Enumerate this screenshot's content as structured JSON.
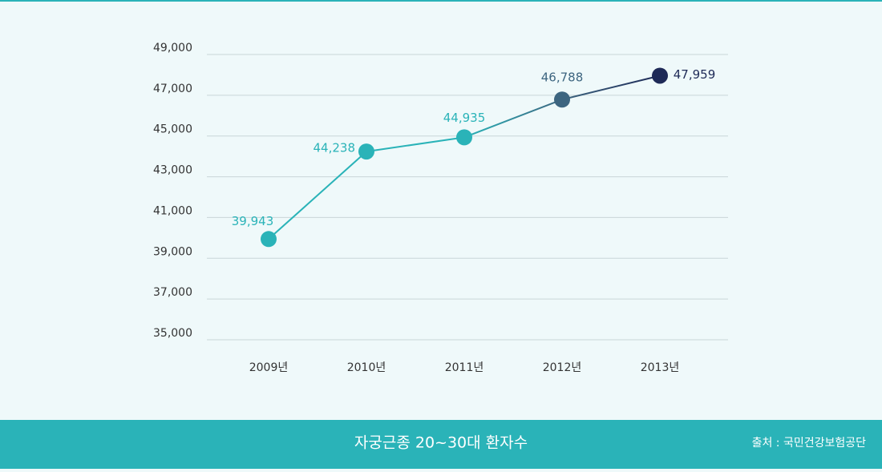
{
  "chart_data": {
    "type": "line",
    "title": "자궁근종 20~30대 환자수",
    "source": "출처 : 국민건강보험공단",
    "categories": [
      "2009년",
      "2010년",
      "2011년",
      "2012년",
      "2013년"
    ],
    "values": [
      39943,
      44238,
      44935,
      46788,
      47959
    ],
    "value_labels": [
      "39,943",
      "44,238",
      "44,935",
      "46,788",
      "47,959"
    ],
    "point_colors": [
      "#2ab3b8",
      "#2ab3b8",
      "#2ab3b8",
      "#3d6580",
      "#1e2a57"
    ],
    "ylim": [
      35000,
      49000
    ],
    "yticks": [
      {
        "value": 35000,
        "label": "35,000"
      },
      {
        "value": 37000,
        "label": "37,000"
      },
      {
        "value": 39000,
        "label": "39,000"
      },
      {
        "value": 41000,
        "label": "41,000"
      },
      {
        "value": 43000,
        "label": "43,000"
      },
      {
        "value": 45000,
        "label": "45,000"
      },
      {
        "value": 47000,
        "label": "47,000"
      },
      {
        "value": 49000,
        "label": "49,000"
      }
    ],
    "grid": true
  }
}
